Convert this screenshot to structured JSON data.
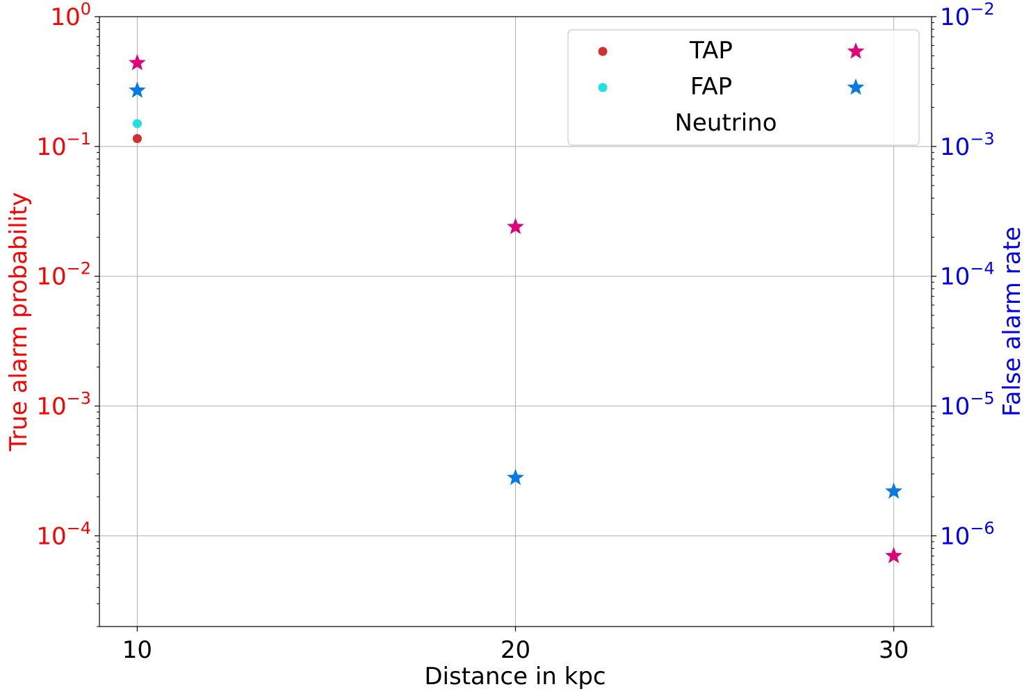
{
  "chart_data": {
    "type": "scatter",
    "xlabel": "Distance in kpc",
    "ylabel_left": "True alarm probability",
    "ylabel_right": "False alarm rate",
    "x_ticks": [
      10,
      20,
      30
    ],
    "x_tick_labels": [
      "10",
      "20",
      "30"
    ],
    "xlim": [
      9,
      31
    ],
    "left_axis": {
      "scale": "log",
      "ylim": [
        2e-05,
        1
      ],
      "tick_values": [
        1,
        0.1,
        0.01,
        0.001,
        0.0001
      ],
      "tick_exponents": [
        "0",
        "−1",
        "−2",
        "−3",
        "−4"
      ],
      "tick_base": "10",
      "color": "#ff0000"
    },
    "right_axis": {
      "scale": "log",
      "ylim": [
        2e-07,
        0.01
      ],
      "tick_values": [
        0.01,
        0.001,
        0.0001,
        1e-05,
        1e-06
      ],
      "tick_exponents": [
        "−2",
        "−3",
        "−4",
        "−5",
        "−6"
      ],
      "tick_base": "10",
      "color": "#0000ee"
    },
    "grid": true,
    "legend": {
      "placement": "top-right",
      "rows": [
        {
          "label": "TAP",
          "left_marker": "dot",
          "left_color": "#d03030",
          "right_marker": "star",
          "right_color": "#e0007a"
        },
        {
          "label": "FAP",
          "left_marker": "dot",
          "left_color": "#20e0e0",
          "right_marker": "star",
          "right_color": "#0a7ae0"
        },
        {
          "label": "Neutrino"
        }
      ]
    },
    "series": [
      {
        "axis": "left",
        "marker": "dot",
        "color": "#d03030",
        "points": [
          {
            "x": 10,
            "y": 0.115
          }
        ]
      },
      {
        "axis": "left",
        "marker": "dot",
        "color": "#20e0e0",
        "points": [
          {
            "x": 10,
            "y": 0.15
          }
        ]
      },
      {
        "axis": "left",
        "marker": "star",
        "color": "#e0007a",
        "points": [
          {
            "x": 10,
            "y": 0.44
          },
          {
            "x": 20,
            "y": 0.024
          },
          {
            "x": 30,
            "y": 7e-05
          }
        ]
      },
      {
        "axis": "left",
        "marker": "star",
        "color": "#0a7ae0",
        "points": [
          {
            "x": 10,
            "y": 0.27
          },
          {
            "x": 20,
            "y": 0.00028
          },
          {
            "x": 30,
            "y": 0.00022
          }
        ]
      }
    ]
  }
}
